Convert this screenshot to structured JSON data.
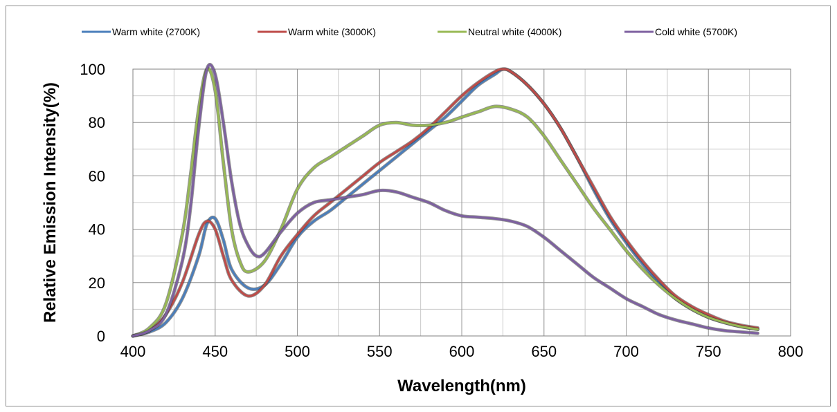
{
  "chart_data": {
    "type": "line",
    "title": "",
    "xlabel": "Wavelength(nm)",
    "ylabel": "Relative Emission Intensity(%)",
    "xlim": [
      400,
      800
    ],
    "ylim": [
      0,
      100
    ],
    "x_ticks": [
      400,
      450,
      500,
      550,
      600,
      650,
      700,
      750,
      800
    ],
    "y_ticks": [
      0,
      20,
      40,
      60,
      80,
      100
    ],
    "grid": true,
    "legend_position": "top",
    "series": [
      {
        "name": "Warm white (2700K)",
        "color": "#4a7ebb",
        "x": [
          400,
          410,
          420,
          430,
          440,
          445,
          450,
          455,
          460,
          470,
          480,
          490,
          500,
          510,
          520,
          530,
          540,
          550,
          560,
          570,
          580,
          590,
          600,
          610,
          620,
          625,
          630,
          640,
          650,
          660,
          670,
          680,
          690,
          700,
          710,
          720,
          730,
          740,
          750,
          760,
          770,
          780
        ],
        "y": [
          0,
          1.5,
          5,
          14,
          30,
          42,
          44,
          36,
          25,
          18,
          19,
          27,
          37,
          43,
          47,
          52,
          57,
          62,
          67,
          72,
          77,
          82,
          88,
          94,
          98,
          100,
          99,
          94,
          87,
          78,
          67,
          55,
          44,
          35,
          27,
          20,
          14,
          10,
          7,
          5,
          3.5,
          2.5
        ]
      },
      {
        "name": "Warm white (3000K)",
        "color": "#be4b48",
        "x": [
          400,
          410,
          420,
          430,
          440,
          445,
          450,
          455,
          460,
          470,
          480,
          490,
          500,
          510,
          520,
          530,
          540,
          550,
          560,
          570,
          580,
          590,
          600,
          610,
          620,
          625,
          630,
          640,
          650,
          660,
          670,
          680,
          690,
          700,
          710,
          720,
          730,
          740,
          750,
          760,
          770,
          780
        ],
        "y": [
          0,
          2,
          8,
          20,
          38,
          43,
          40,
          30,
          21,
          15,
          19,
          30,
          38,
          45,
          50,
          55,
          60,
          65,
          69,
          73,
          78,
          84,
          90,
          95,
          99,
          100,
          99,
          94,
          87,
          78,
          67,
          56,
          45,
          36,
          28,
          21,
          15,
          11,
          8,
          5.5,
          4,
          3
        ]
      },
      {
        "name": "Neutral white (4000K)",
        "color": "#98b954",
        "x": [
          400,
          410,
          420,
          430,
          435,
          440,
          445,
          450,
          455,
          460,
          465,
          470,
          480,
          490,
          500,
          510,
          520,
          530,
          540,
          550,
          560,
          570,
          580,
          590,
          600,
          610,
          620,
          630,
          640,
          650,
          660,
          670,
          680,
          690,
          700,
          710,
          720,
          730,
          740,
          750,
          760,
          770,
          780
        ],
        "y": [
          0,
          3,
          12,
          38,
          60,
          85,
          100,
          92,
          65,
          40,
          28,
          24,
          28,
          40,
          55,
          63,
          67,
          71,
          75,
          79,
          80,
          79,
          79,
          80,
          82,
          84,
          86,
          85,
          82,
          75,
          66,
          57,
          48,
          40,
          32,
          25,
          19,
          14,
          10,
          7,
          5,
          3.5,
          2.5
        ]
      },
      {
        "name": "Cold white (5700K)",
        "color": "#7d60a0",
        "x": [
          400,
          410,
          420,
          430,
          435,
          440,
          445,
          450,
          455,
          460,
          465,
          470,
          475,
          480,
          490,
          500,
          510,
          520,
          530,
          540,
          550,
          560,
          570,
          580,
          590,
          600,
          610,
          620,
          630,
          640,
          650,
          660,
          670,
          680,
          690,
          700,
          710,
          720,
          730,
          740,
          750,
          760,
          770,
          780
        ],
        "y": [
          0,
          2,
          8,
          28,
          48,
          78,
          100,
          98,
          80,
          58,
          42,
          34,
          30,
          31,
          39,
          46,
          50,
          51,
          52,
          53,
          54.5,
          54,
          52,
          50,
          47,
          45,
          44.5,
          44,
          43,
          41,
          37,
          32,
          27,
          22,
          18,
          14,
          11,
          8,
          6,
          4.5,
          3,
          2,
          1.5,
          1
        ]
      }
    ]
  }
}
